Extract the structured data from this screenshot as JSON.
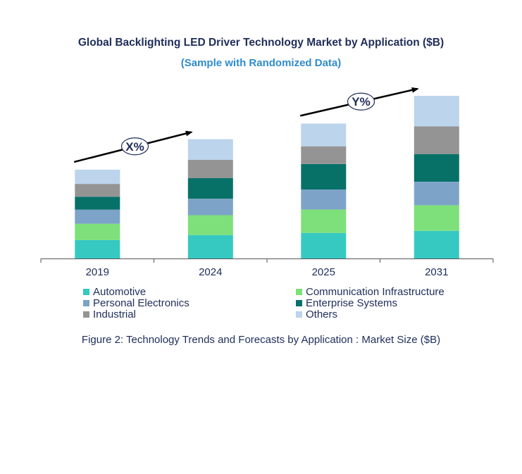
{
  "title": "Global Backlighting LED Driver Technology Market by Application ($B)",
  "subtitle": "(Sample with Randomized Data)",
  "caption": "Figure 2: Technology  Trends  and Forecasts by Application : Market Size ($B)",
  "annotations": [
    {
      "label": "X%",
      "from_category": "2019",
      "to_category": "2024"
    },
    {
      "label": "Y%",
      "from_category": "2025",
      "to_category": "2031"
    }
  ],
  "chart_data": {
    "type": "bar",
    "stacked": true,
    "categories": [
      "2019",
      "2024",
      "2025",
      "2031"
    ],
    "series": [
      {
        "name": "Automotive",
        "color": "#36c9c1",
        "values": [
          26,
          33,
          36,
          39
        ]
      },
      {
        "name": "Communication Infrastructure",
        "color": "#7de07a",
        "values": [
          23,
          28,
          33,
          36
        ]
      },
      {
        "name": "Personal Electronics",
        "color": "#7da3c8",
        "values": [
          20,
          23,
          28,
          33
        ]
      },
      {
        "name": "Enterprise Systems",
        "color": "#077168",
        "values": [
          18,
          29,
          36,
          39
        ]
      },
      {
        "name": "Industrial",
        "color": "#949494",
        "values": [
          18,
          26,
          25,
          39
        ]
      },
      {
        "name": "Others",
        "color": "#bcd4ec",
        "values": [
          20,
          29,
          32,
          43
        ]
      }
    ],
    "xlabel": "",
    "ylabel": "",
    "ylim": [
      0,
      235
    ],
    "grid": false,
    "legend_position": "bottom"
  }
}
